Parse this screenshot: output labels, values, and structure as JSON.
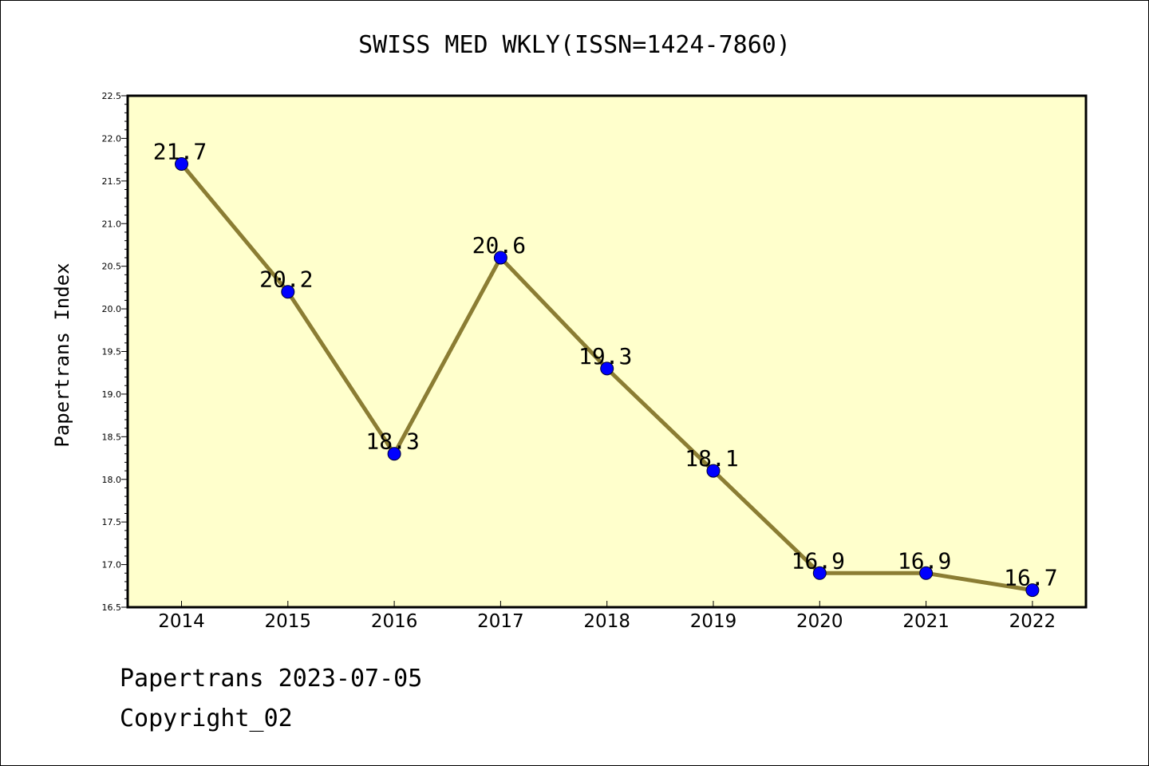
{
  "chart_data": {
    "type": "line",
    "title": "SWISS MED WKLY(ISSN=1424-7860)",
    "xlabel": "",
    "ylabel": "Papertrans Index",
    "categories": [
      "2014",
      "2015",
      "2016",
      "2017",
      "2018",
      "2019",
      "2020",
      "2021",
      "2022"
    ],
    "series": [
      {
        "values": [
          21.7,
          20.2,
          18.3,
          20.6,
          19.3,
          18.1,
          16.9,
          16.9,
          16.7
        ],
        "data_labels": [
          "21.7",
          "20.2",
          "18.3",
          "20.6",
          "19.3",
          "18.1",
          "16.9",
          "16.9",
          "16.7"
        ]
      }
    ],
    "ylim": [
      16.5,
      22.5
    ],
    "yticks": [
      "16.5",
      "17.0",
      "17.5",
      "18.0",
      "18.5",
      "19.0",
      "19.5",
      "20.0",
      "20.5",
      "21.0",
      "21.5",
      "22.0",
      "22.5"
    ],
    "grid": false,
    "legend": "none",
    "colors": {
      "plot_background": "#ffffcc",
      "line": "#8b7d33",
      "marker": "#0000ff"
    }
  },
  "footer": {
    "date_line": "Papertrans 2023-07-05",
    "copyright_line": "Copyright_02"
  }
}
